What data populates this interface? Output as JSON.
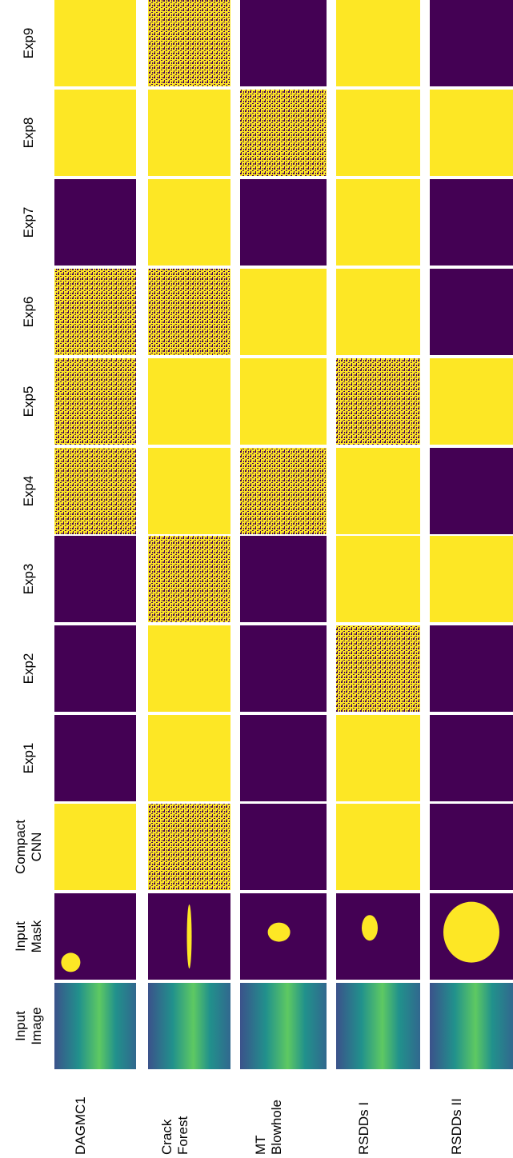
{
  "row_labels": [
    [
      "Exp9"
    ],
    [
      "Exp8"
    ],
    [
      "Exp7"
    ],
    [
      "Exp6"
    ],
    [
      "Exp5"
    ],
    [
      "Exp4"
    ],
    [
      "Exp3"
    ],
    [
      "Exp2"
    ],
    [
      "Exp1"
    ],
    [
      "Compact",
      "CNN"
    ],
    [
      "Input",
      "Mask"
    ],
    [
      "Input",
      "Image"
    ]
  ],
  "datasets": [
    [
      "DAGMC1"
    ],
    [
      "Crack",
      "Forest"
    ],
    [
      "MT",
      "Blowhole"
    ],
    [
      "RSDDs I"
    ],
    [
      "RSDDs II"
    ]
  ]
}
